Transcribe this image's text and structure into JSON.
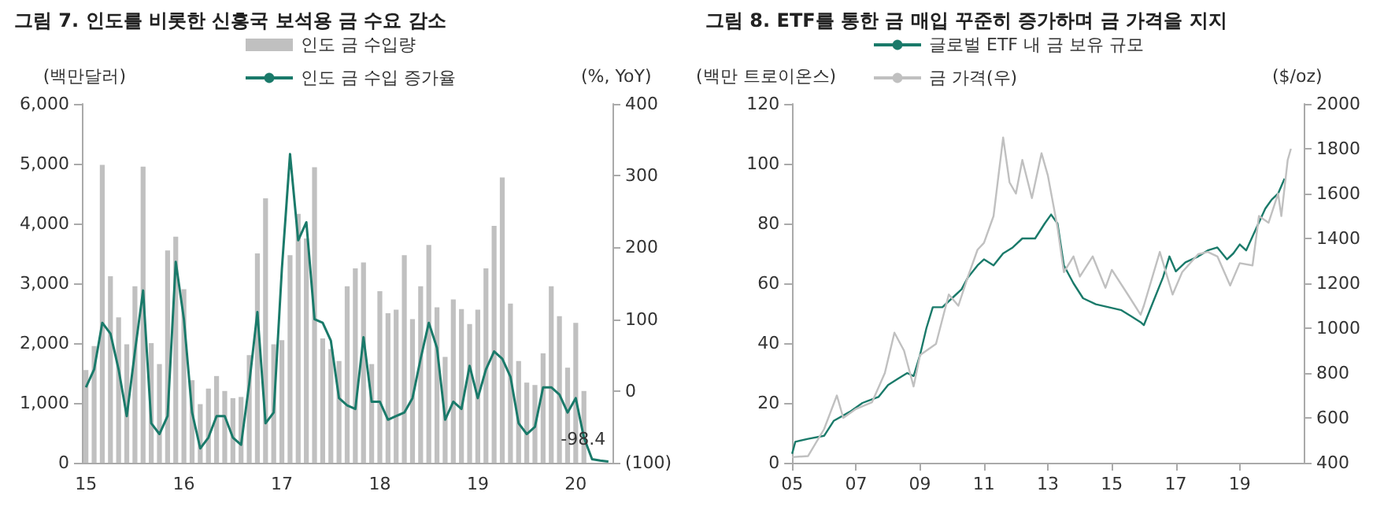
{
  "chart_data": [
    {
      "type": "bar",
      "title": "그림 7. 인도를 비롯한 신흥국 보석용 금 수요 감소",
      "ylabel": "(백만달러)",
      "y2label": "(%, YoY)",
      "categories": [
        "15",
        null,
        null,
        null,
        null,
        null,
        null,
        null,
        null,
        null,
        null,
        null,
        "16",
        null,
        null,
        null,
        null,
        null,
        null,
        null,
        null,
        null,
        null,
        null,
        "17",
        null,
        null,
        null,
        null,
        null,
        null,
        null,
        null,
        null,
        null,
        null,
        "18",
        null,
        null,
        null,
        null,
        null,
        null,
        null,
        null,
        null,
        null,
        null,
        "19",
        null,
        null,
        null,
        null,
        null,
        null,
        null,
        null,
        null,
        null,
        null,
        "20",
        null,
        null,
        null,
        null
      ],
      "series": [
        {
          "name": "인도 금 수입량",
          "color": "#c0c0c0",
          "values": [
            1550,
            1950,
            4980,
            3120,
            2430,
            1980,
            2950,
            4950,
            2000,
            1650,
            3550,
            3780,
            2900,
            1380,
            980,
            1240,
            1450,
            1200,
            1080,
            1100,
            1800,
            3500,
            4420,
            1980,
            2050,
            3470,
            4160,
            3750,
            4940,
            2080,
            1900,
            1700,
            2950,
            3250,
            3350,
            1650,
            2870,
            2500,
            2560,
            3470,
            2400,
            2950,
            3640,
            2600,
            1770,
            2730,
            2570,
            2320,
            2560,
            3250,
            3960,
            4770,
            2660,
            1700,
            1340,
            1300,
            1830,
            2950,
            2450,
            1590,
            2340,
            1200,
            null,
            null,
            null
          ]
        },
        {
          "name": "인도 금 수입 증가율",
          "type": "line",
          "axis": "y2",
          "color": "#1a7a6a",
          "values": [
            5,
            30,
            95,
            80,
            30,
            -35,
            55,
            140,
            -45,
            -60,
            -35,
            180,
            100,
            -30,
            -80,
            -65,
            -35,
            -35,
            -65,
            -75,
            10,
            110,
            -45,
            -30,
            170,
            330,
            210,
            235,
            100,
            95,
            70,
            -10,
            -20,
            -25,
            75,
            -15,
            -15,
            -40,
            -35,
            -30,
            -10,
            45,
            95,
            60,
            -40,
            -15,
            -25,
            35,
            -10,
            30,
            55,
            45,
            20,
            -45,
            -60,
            -50,
            5,
            5,
            -5,
            -30,
            -10,
            -65,
            -95,
            -97,
            -98.4
          ],
          "value_labels": [
            null,
            null,
            null,
            null,
            null,
            null,
            null,
            null,
            null,
            null,
            null,
            null,
            null,
            null,
            null,
            null,
            null,
            null,
            null,
            null,
            null,
            null,
            null,
            null,
            null,
            null,
            null,
            null,
            null,
            null,
            null,
            null,
            null,
            null,
            null,
            null,
            null,
            null,
            null,
            null,
            null,
            null,
            null,
            null,
            null,
            null,
            null,
            null,
            null,
            null,
            null,
            null,
            null,
            null,
            null,
            null,
            null,
            null,
            null,
            null,
            null,
            null,
            null,
            null,
            "-98.4"
          ]
        }
      ],
      "ylim": [
        0,
        6000
      ],
      "yticks": [
        {
          "value": 0,
          "label": "0"
        },
        {
          "value": 1000,
          "label": "1,000"
        },
        {
          "value": 2000,
          "label": "2,000"
        },
        {
          "value": 3000,
          "label": "3,000"
        },
        {
          "value": 4000,
          "label": "4,000"
        },
        {
          "value": 5000,
          "label": "5,000"
        },
        {
          "value": 6000,
          "label": "6,000"
        }
      ],
      "y2lim": [
        -100,
        400
      ],
      "y2ticks": [
        {
          "value": -100,
          "label": "(100)"
        },
        0,
        100,
        200,
        300,
        400
      ],
      "legend": "top"
    },
    {
      "type": "line",
      "title": "그림 8. ETF를 통한 금 매입 꾸준히 증가하며 금 가격을 지지",
      "ylabel": "(백만 트로이온스)",
      "y2label": "($/oz)",
      "series": [
        {
          "name": "글로벌 ETF 내 금 보유 규모",
          "color": "#1a7a6a",
          "x": [
            2005.0,
            2005.1,
            2005.5,
            2006.0,
            2006.3,
            2006.8,
            2007.2,
            2007.7,
            2008.0,
            2008.3,
            2008.6,
            2008.8,
            2009.0,
            2009.2,
            2009.4,
            2009.7,
            2010.0,
            2010.3,
            2010.5,
            2010.8,
            2011.0,
            2011.3,
            2011.6,
            2011.9,
            2012.2,
            2012.6,
            2012.9,
            2013.1,
            2013.3,
            2013.5,
            2013.8,
            2014.1,
            2014.5,
            2014.9,
            2015.3,
            2015.6,
            2015.9,
            2016.0,
            2016.3,
            2016.6,
            2016.8,
            2017.0,
            2017.3,
            2017.7,
            2018.0,
            2018.3,
            2018.6,
            2018.8,
            2019.0,
            2019.2,
            2019.5,
            2019.8,
            2020.0,
            2020.2,
            2020.4
          ],
          "values": [
            3,
            7,
            8,
            9,
            14,
            17,
            20,
            22,
            26,
            28,
            30,
            29,
            36,
            45,
            52,
            52,
            55,
            58,
            62,
            66,
            68,
            66,
            70,
            72,
            75,
            75,
            80,
            83,
            80,
            66,
            60,
            55,
            53,
            52,
            51,
            49,
            47,
            46,
            54,
            62,
            69,
            64,
            67,
            69,
            71,
            72,
            68,
            70,
            73,
            71,
            78,
            85,
            88,
            90,
            95
          ]
        },
        {
          "name": "금 가격(우)",
          "axis": "y2",
          "color": "#c0c0c0",
          "x": [
            2005.0,
            2005.5,
            2006.0,
            2006.4,
            2006.6,
            2007.0,
            2007.5,
            2007.9,
            2008.2,
            2008.5,
            2008.8,
            2009.0,
            2009.5,
            2009.9,
            2010.2,
            2010.5,
            2010.8,
            2011.0,
            2011.3,
            2011.6,
            2011.8,
            2012.0,
            2012.2,
            2012.5,
            2012.8,
            2013.0,
            2013.3,
            2013.5,
            2013.8,
            2014.0,
            2014.4,
            2014.8,
            2015.0,
            2015.5,
            2015.9,
            2016.0,
            2016.5,
            2016.9,
            2017.2,
            2017.7,
            2018.0,
            2018.3,
            2018.7,
            2019.0,
            2019.4,
            2019.6,
            2019.9,
            2020.2,
            2020.3,
            2020.5,
            2020.6
          ],
          "values": [
            425,
            430,
            550,
            700,
            600,
            640,
            670,
            800,
            980,
            900,
            740,
            880,
            930,
            1150,
            1100,
            1230,
            1350,
            1380,
            1500,
            1850,
            1650,
            1600,
            1750,
            1580,
            1780,
            1680,
            1450,
            1250,
            1320,
            1230,
            1320,
            1180,
            1260,
            1150,
            1060,
            1100,
            1340,
            1150,
            1250,
            1330,
            1340,
            1320,
            1190,
            1290,
            1280,
            1500,
            1470,
            1600,
            1500,
            1750,
            1800
          ]
        }
      ],
      "xlim": [
        2005,
        2021
      ],
      "xticks": [
        {
          "value": 2005,
          "label": "05"
        },
        {
          "value": 2007,
          "label": "07"
        },
        {
          "value": 2009,
          "label": "09"
        },
        {
          "value": 2011,
          "label": "11"
        },
        {
          "value": 2013,
          "label": "13"
        },
        {
          "value": 2015,
          "label": "15"
        },
        {
          "value": 2017,
          "label": "17"
        },
        {
          "value": 2019,
          "label": "19"
        }
      ],
      "ylim": [
        0,
        120
      ],
      "yticks": [
        0,
        20,
        40,
        60,
        80,
        100,
        120
      ],
      "y2lim": [
        400,
        2000
      ],
      "y2ticks": [
        400,
        600,
        800,
        1000,
        1200,
        1400,
        1600,
        1800,
        2000
      ],
      "legend": "top"
    }
  ]
}
